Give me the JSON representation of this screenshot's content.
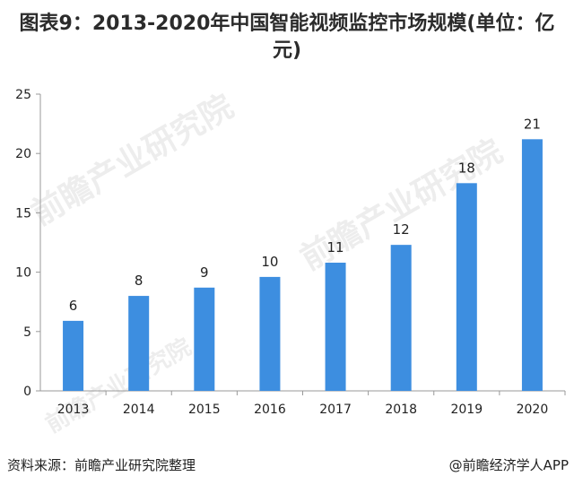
{
  "title_line1": "图表9：2013-2020年中国智能视频监控市场规模(单位：亿",
  "title_line2": "元)",
  "source": "资料来源：前瞻产业研究院整理",
  "brand": "@前瞻经济学人APP",
  "watermark": "前瞻产业研究院",
  "chart_data": {
    "type": "bar",
    "title": "图表9：2013-2020年中国智能视频监控市场规模(单位：亿元)",
    "categories": [
      "2013",
      "2014",
      "2015",
      "2016",
      "2017",
      "2018",
      "2019",
      "2020"
    ],
    "values": [
      6,
      8,
      9,
      10,
      11,
      12,
      18,
      21
    ],
    "bar_heights": [
      5.9,
      8.0,
      8.7,
      9.6,
      10.8,
      12.3,
      17.5,
      21.2
    ],
    "ylim": [
      0,
      25
    ],
    "yticks": [
      0,
      5,
      10,
      15,
      20,
      25
    ],
    "bar_color": "#3d8ee0",
    "grid": false,
    "legend": "none"
  }
}
